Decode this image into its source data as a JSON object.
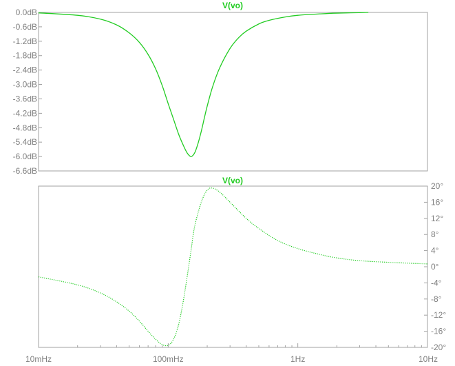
{
  "colors": {
    "trace": "#22cc22",
    "frame": "#a0a0a0",
    "tick_label": "#808080",
    "background": "#ffffff"
  },
  "chart_data": [
    {
      "type": "line",
      "title": "V(vo)",
      "xscale": "log",
      "xlim": [
        0.01,
        3.5
      ],
      "xtick_labels": [],
      "ylim": [
        -6.6,
        0.0
      ],
      "yticks": [
        0.0,
        -0.6,
        -1.2,
        -1.8,
        -2.4,
        -3.0,
        -3.6,
        -4.2,
        -4.8,
        -5.4,
        -6.0,
        -6.6
      ],
      "ytick_labels": [
        "0.0dB",
        "-0.6dB",
        "-1.2dB",
        "-1.8dB",
        "-2.4dB",
        "-3.0dB",
        "-3.6dB",
        "-4.2dB",
        "-4.8dB",
        "-5.4dB",
        "-6.0dB",
        "-6.6dB"
      ],
      "grid": false,
      "series": [
        {
          "name": "V(vo)",
          "style": "solid",
          "x": [
            0.01,
            0.02,
            0.03,
            0.04,
            0.05,
            0.06,
            0.07,
            0.08,
            0.09,
            0.1,
            0.11,
            0.12,
            0.13,
            0.14,
            0.15,
            0.16,
            0.17,
            0.18,
            0.19,
            0.2,
            0.22,
            0.25,
            0.3,
            0.35,
            0.4,
            0.5,
            0.6,
            0.8,
            1.0,
            1.5,
            2.0,
            3.0,
            3.5
          ],
          "y": [
            -0.02,
            -0.12,
            -0.28,
            -0.52,
            -0.85,
            -1.25,
            -1.75,
            -2.35,
            -3.05,
            -3.8,
            -4.45,
            -5.05,
            -5.5,
            -5.85,
            -6.0,
            -5.85,
            -5.45,
            -4.95,
            -4.4,
            -3.9,
            -3.1,
            -2.3,
            -1.5,
            -1.05,
            -0.78,
            -0.48,
            -0.33,
            -0.19,
            -0.12,
            -0.06,
            -0.03,
            -0.01,
            0.0
          ]
        }
      ]
    },
    {
      "type": "line",
      "title": "V(vo)",
      "xscale": "log",
      "xlim": [
        0.01,
        10
      ],
      "xticks": [
        0.01,
        0.1,
        1,
        10
      ],
      "xtick_labels": [
        "10mHz",
        "100mHz",
        "1Hz",
        "10Hz"
      ],
      "ylim": [
        -20,
        20
      ],
      "yticks": [
        20,
        16,
        12,
        8,
        4,
        0,
        -4,
        -8,
        -12,
        -16,
        -20
      ],
      "ytick_labels": [
        "20°",
        "16°",
        "12°",
        "8°",
        "4°",
        "0°",
        "-4°",
        "-8°",
        "-12°",
        "-16°",
        "-20°"
      ],
      "grid": false,
      "series": [
        {
          "name": "V(vo)",
          "style": "dotted",
          "x": [
            0.01,
            0.02,
            0.03,
            0.04,
            0.05,
            0.06,
            0.07,
            0.08,
            0.09,
            0.1,
            0.11,
            0.12,
            0.13,
            0.14,
            0.15,
            0.16,
            0.18,
            0.2,
            0.22,
            0.25,
            0.3,
            0.4,
            0.5,
            0.7,
            1.0,
            1.5,
            2.0,
            3.0,
            5.0,
            7.0,
            10.0
          ],
          "y": [
            -2.5,
            -4.5,
            -6.5,
            -8.7,
            -11.0,
            -13.5,
            -16.0,
            -18.0,
            -19.3,
            -19.5,
            -18.0,
            -14.5,
            -9.0,
            -2.5,
            4.0,
            10.0,
            16.0,
            19.0,
            19.5,
            18.5,
            16.0,
            12.0,
            9.5,
            6.5,
            4.5,
            3.0,
            2.2,
            1.5,
            1.1,
            0.9,
            0.7
          ]
        }
      ]
    }
  ]
}
